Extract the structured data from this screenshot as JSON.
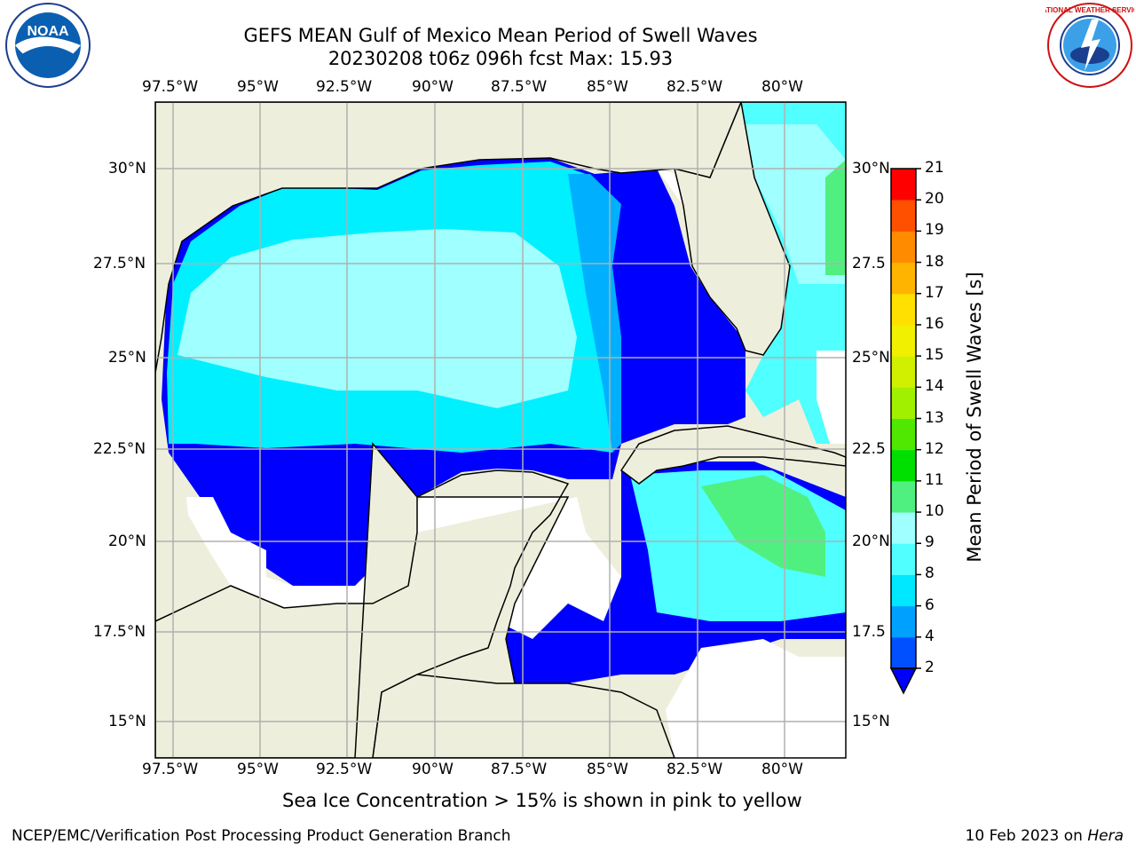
{
  "title": {
    "line1": "GEFS MEAN Gulf of Mexico Mean Period of Swell Waves",
    "line2": "20230208 t06z 096h fcst   Max: 15.93"
  },
  "logos": {
    "left": {
      "name": "noaa-logo",
      "text": "NOAA"
    },
    "right": {
      "name": "nws-logo",
      "text": "NATIONAL WEATHER SERVICE"
    }
  },
  "map": {
    "lon_labels": [
      "97.5°W",
      "95°W",
      "92.5°W",
      "90°W",
      "87.5°W",
      "85°W",
      "82.5°W",
      "80°W"
    ],
    "lat_labels": [
      "30°N",
      "27.5°N",
      "25°N",
      "22.5°N",
      "20°N",
      "17.5°N",
      "15°N"
    ],
    "lat_labels_right": [
      "30°N",
      "27.5",
      "25°N",
      "22.5",
      "20°N",
      "17.5",
      "15°N"
    ],
    "colors": {
      "land": "#eeeedc",
      "grid": "#b0b0b0"
    }
  },
  "colorbar": {
    "label": "Mean Period of Swell Waves [s]",
    "ticks": [
      "2",
      "4",
      "6",
      "8",
      "9",
      "10",
      "11",
      "12",
      "13",
      "14",
      "15",
      "16",
      "17",
      "18",
      "19",
      "20",
      "21"
    ],
    "colors": [
      "#0050ff",
      "#00a0ff",
      "#00e8ff",
      "#50ffff",
      "#a0ffff",
      "#50f080",
      "#00e000",
      "#50e800",
      "#a0f000",
      "#d0f000",
      "#f0f000",
      "#ffe000",
      "#ffb400",
      "#ff8c00",
      "#ff5000",
      "#ff2800",
      "#ff0000"
    ],
    "extend_color": "#0000ff"
  },
  "footer": {
    "caption": "Sea Ice Concentration > 15% is shown in pink to yellow",
    "credit": "NCEP/EMC/Verification Post Processing Product Generation Branch",
    "date": "10 Feb 2023 on",
    "host": "Hera"
  }
}
